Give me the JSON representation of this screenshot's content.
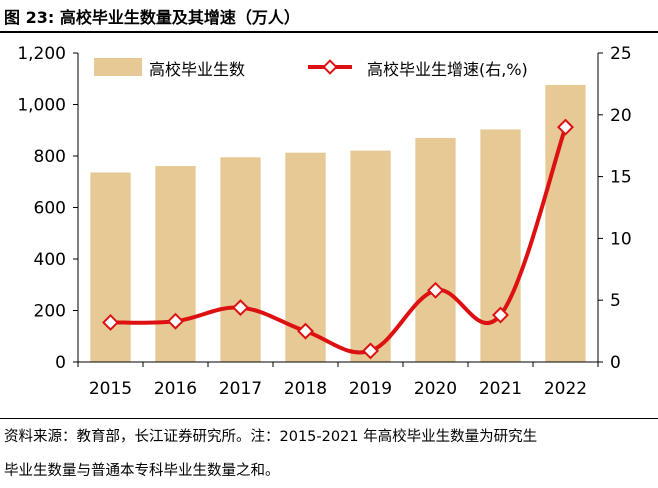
{
  "figure": {
    "label": "图 23:",
    "title": "高校毕业生数量及其增速（万人）"
  },
  "footnote": {
    "line1": "资料来源：教育部，长江证券研究所。注：2015-2021 年高校毕业生数量为研究生",
    "line2": "毕业生数量与普通本专科毕业生数量之和。"
  },
  "colors": {
    "bar": "#e6c994",
    "line": "#dd1111",
    "marker_fill": "#ffffff"
  },
  "chart_data": {
    "type": "bar+line",
    "categories": [
      "2015",
      "2016",
      "2017",
      "2018",
      "2019",
      "2020",
      "2021",
      "2022"
    ],
    "series": [
      {
        "name": "高校毕业生数",
        "type": "bar",
        "axis": "left",
        "values": [
          736,
          761,
          795,
          813,
          821,
          870,
          903,
          1076
        ]
      },
      {
        "name": "高校毕业生增速(右,%)",
        "type": "line",
        "axis": "right",
        "values": [
          3.2,
          3.3,
          4.4,
          2.5,
          0.9,
          5.8,
          3.8,
          19.0
        ]
      }
    ],
    "y_left": {
      "min": 0,
      "max": 1200,
      "ticks": [
        0,
        200,
        400,
        600,
        800,
        1000,
        1200
      ],
      "tick_labels": [
        "0",
        "200",
        "400",
        "600",
        "800",
        "1,000",
        "1,200"
      ]
    },
    "y_right": {
      "min": 0,
      "max": 25,
      "ticks": [
        0,
        5,
        10,
        15,
        20,
        25
      ],
      "tick_labels": [
        "0",
        "5",
        "10",
        "15",
        "20",
        "25"
      ]
    },
    "legend_position": "top"
  }
}
